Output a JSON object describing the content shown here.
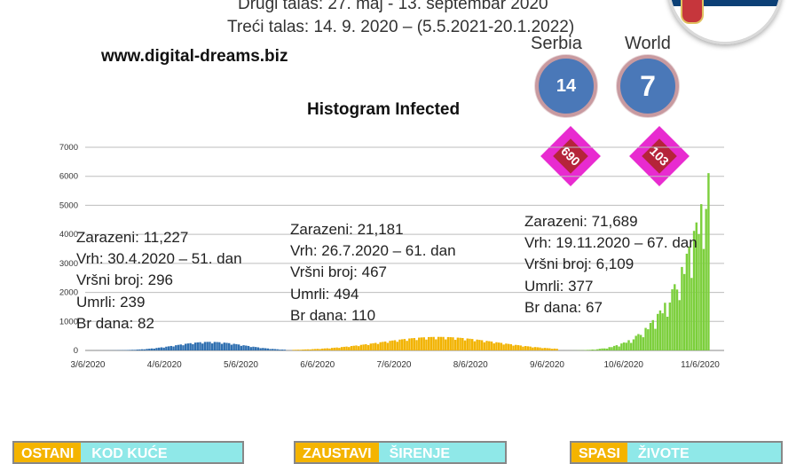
{
  "header": {
    "line1": "Drugi talas: 27. maj - 13. septembar 2020",
    "line2": "Treći talas: 14. 9. 2020 – (5.5.2021-20.1.2022)",
    "website": "www.digital-dreams.biz"
  },
  "indicators": {
    "serbia": {
      "label": "Serbia",
      "rank": "14",
      "diamond": "690"
    },
    "world": {
      "label": "World",
      "rank": "7",
      "diamond": "103"
    }
  },
  "flag": {
    "colors": [
      "#c6363c",
      "#0c4076",
      "#ffffff"
    ]
  },
  "chart_data": {
    "type": "bar",
    "title": "Histogram Infected",
    "ylim": [
      0,
      7000
    ],
    "yticks": [
      "0",
      "1000",
      "2000",
      "3000",
      "4000",
      "5000",
      "6000",
      "7000"
    ],
    "xtick_labels": [
      "3/6/2020",
      "4/6/2020",
      "5/6/2020",
      "6/6/2020",
      "7/6/2020",
      "8/6/2020",
      "9/6/2020",
      "10/6/2020",
      "11/6/2020"
    ],
    "grid": true,
    "series": [
      {
        "wave": 1,
        "color": "#2f6fb0",
        "days": 82,
        "peak": 296,
        "peak_day": 51
      },
      {
        "wave": 2,
        "color": "#f2b300",
        "days": 110,
        "peak": 467,
        "peak_day": 61
      },
      {
        "wave": 3,
        "color": "#7ccf3c",
        "days": 67,
        "peak": 6109,
        "peak_day": 67
      }
    ]
  },
  "waves": [
    {
      "lines": [
        "Zarazeni: 11,227",
        "Vrh: 30.4.2020 – 51. dan",
        "Vršni broj: 296",
        "Umrli: 239",
        "Br dana: 82"
      ]
    },
    {
      "lines": [
        "Zarazeni: 21,181",
        "Vrh: 26.7.2020 – 61. dan",
        "Vršni broj: 467",
        "Umrli: 494",
        "Br dana: 110"
      ]
    },
    {
      "lines": [
        "Zarazeni: 71,689",
        "Vrh: 19.11.2020 – 67. dan",
        "Vršni broj: 6,109",
        "Umrli: 377",
        "Br dana: 67"
      ]
    }
  ],
  "buttons": [
    {
      "a": "OSTANI",
      "b": "KOD KUĆE"
    },
    {
      "a": "ZAUSTAVI",
      "b": "ŠIRENJE"
    },
    {
      "a": "SPASI",
      "b": "ŽIVOTE"
    }
  ]
}
